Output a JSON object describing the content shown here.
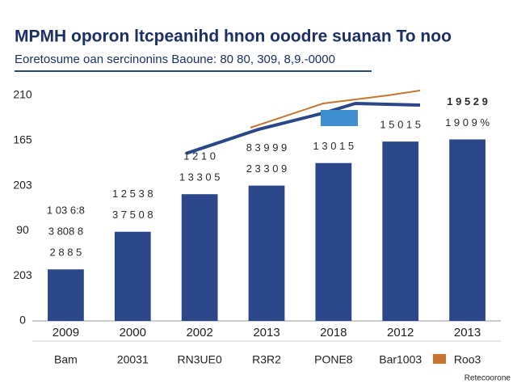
{
  "chart_data": {
    "type": "bar",
    "title": "MPMH oporon ltcpeanihd hnon ooodre suanan To noo",
    "subtitle": "Eoretosume oan sercinonins Baoune: 80 80, 309, 8,9.-0000",
    "y_axis_labels": [
      "210",
      "165",
      "203",
      "90",
      "203",
      "0"
    ],
    "categories": [
      "2009",
      "2000",
      "2002",
      "2013",
      "2018",
      "2012",
      "2013"
    ],
    "values": [
      48,
      83,
      118,
      126,
      147,
      167,
      169
    ],
    "ylim": [
      0,
      210
    ],
    "color": "#2b478a",
    "annotations": [
      [
        "1 03 6:8",
        "3 808 8",
        "2 8 8 5"
      ],
      [
        "1 2 5 3 8",
        "3 7 5 0 8"
      ],
      [
        "1 2 1 0",
        "1 3 3 0 5"
      ],
      [
        "8 3 9 9 9",
        "2 3 3 0 9"
      ],
      [
        "1 3 0 1 5"
      ],
      [
        "1 5 0 1 5"
      ],
      [
        "1 9 5 2 9",
        "1 9 0 9 %"
      ]
    ],
    "bottom_labels": [
      "Bam",
      "20031",
      "RN3UE0",
      "R3R2",
      "PONE8",
      "Bar1003",
      "Roo3"
    ],
    "footer": "Retecoorone"
  }
}
